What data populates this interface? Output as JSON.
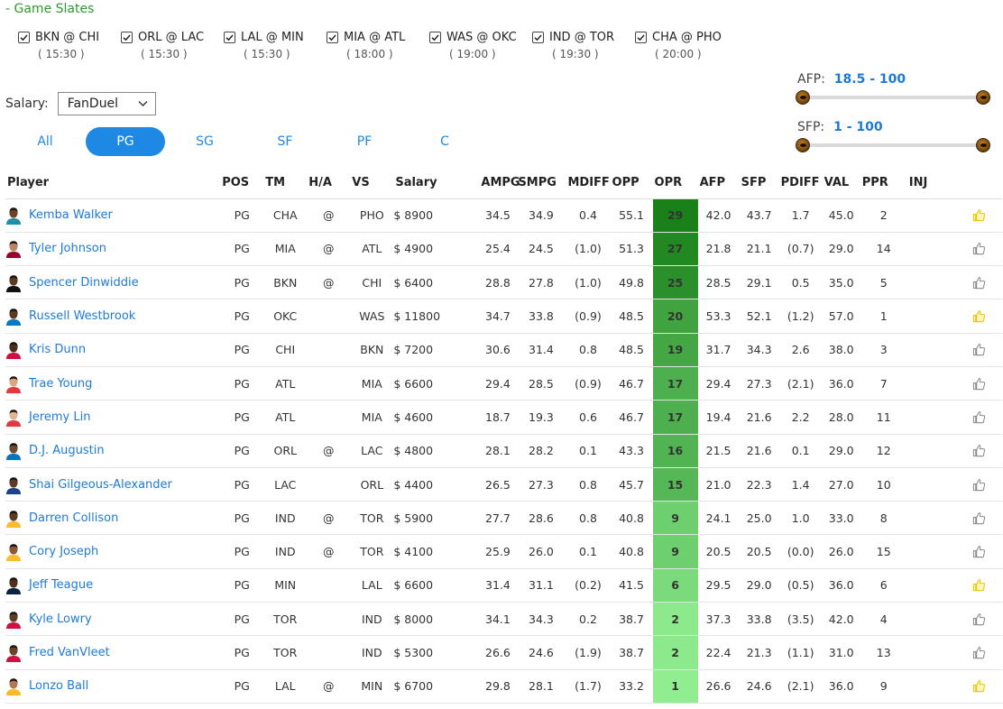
{
  "slates_title": "- Game Slates",
  "slates": [
    {
      "label": "BKN @ CHI",
      "time": "( 15:30 )"
    },
    {
      "label": "ORL @ LAC",
      "time": "( 15:30 )"
    },
    {
      "label": "LAL @ MIN",
      "time": "( 15:30 )"
    },
    {
      "label": "MIA @ ATL",
      "time": "( 18:00 )"
    },
    {
      "label": "WAS @ OKC",
      "time": "( 19:00 )"
    },
    {
      "label": "IND @ TOR",
      "time": "( 19:30 )"
    },
    {
      "label": "CHA @ PHO",
      "time": "( 20:00 )"
    }
  ],
  "salary": {
    "label": "Salary:",
    "selected": "FanDuel"
  },
  "position_tabs": [
    {
      "label": "All",
      "active": false
    },
    {
      "label": "PG",
      "active": true
    },
    {
      "label": "SG",
      "active": false
    },
    {
      "label": "SF",
      "active": false
    },
    {
      "label": "PF",
      "active": false
    },
    {
      "label": "C",
      "active": false
    }
  ],
  "afp_filter": {
    "label": "AFP:",
    "range": "18.5 - 100"
  },
  "sfp_filter": {
    "label": "SFP:",
    "range": "1 - 100"
  },
  "columns": [
    "Player",
    "POS",
    "TM",
    "H/A",
    "VS",
    "Salary",
    "AMPG",
    "SMPG",
    "MDIFF",
    "OPP",
    "OPR",
    "AFP",
    "SFP",
    "PDIFF",
    "VAL",
    "PPR",
    "INJ"
  ],
  "colors": {
    "accent": "#1e88e5",
    "link": "#1e7ad9",
    "positive": "#2e9a2e",
    "negative": "#d23d3d",
    "opr_text": "#ffef3a",
    "thumb_on": "#f2c200",
    "thumb_off": "#8a8a8a"
  },
  "players": [
    {
      "name": "Kemba Walker",
      "pos": "PG",
      "tm": "CHA",
      "ha": "@",
      "vs": "PHO",
      "salary": "$ 8900",
      "ampg": "34.5",
      "smpg": "34.9",
      "mdiff": "0.4",
      "opp": "55.1",
      "opr": "29",
      "afp": "42.0",
      "sfp": "43.7",
      "pdiff": "1.7",
      "val": "45.0",
      "ppr": "2",
      "thumb": "up-gold",
      "skin": "#6b4427",
      "jersey": "#1f8ea6"
    },
    {
      "name": "Tyler Johnson",
      "pos": "PG",
      "tm": "MIA",
      "ha": "@",
      "vs": "ATL",
      "salary": "$ 4900",
      "ampg": "25.4",
      "smpg": "24.5",
      "mdiff": "(1.0)",
      "opp": "51.3",
      "opr": "27",
      "afp": "21.8",
      "sfp": "21.1",
      "pdiff": "(0.7)",
      "val": "29.0",
      "ppr": "14",
      "thumb": "up-grey",
      "skin": "#b98463",
      "jersey": "#98002e"
    },
    {
      "name": "Spencer Dinwiddie",
      "pos": "PG",
      "tm": "BKN",
      "ha": "@",
      "vs": "CHI",
      "salary": "$ 6400",
      "ampg": "28.8",
      "smpg": "27.8",
      "mdiff": "(1.0)",
      "opp": "49.8",
      "opr": "25",
      "afp": "28.5",
      "sfp": "29.1",
      "pdiff": "0.5",
      "val": "35.0",
      "ppr": "5",
      "thumb": "up-grey",
      "skin": "#5a3a22",
      "jersey": "#111111"
    },
    {
      "name": "Russell Westbrook",
      "pos": "PG",
      "tm": "OKC",
      "ha": "",
      "vs": "WAS",
      "salary": "$ 11800",
      "ampg": "34.7",
      "smpg": "33.8",
      "mdiff": "(0.9)",
      "opp": "48.5",
      "opr": "20",
      "afp": "53.3",
      "sfp": "52.1",
      "pdiff": "(1.2)",
      "val": "57.0",
      "ppr": "1",
      "thumb": "up-gold",
      "skin": "#5c3b24",
      "jersey": "#007ac1"
    },
    {
      "name": "Kris Dunn",
      "pos": "PG",
      "tm": "CHI",
      "ha": "",
      "vs": "BKN",
      "salary": "$ 7200",
      "ampg": "30.6",
      "smpg": "31.4",
      "mdiff": "0.8",
      "opp": "48.5",
      "opr": "19",
      "afp": "31.7",
      "sfp": "34.3",
      "pdiff": "2.6",
      "val": "38.0",
      "ppr": "3",
      "thumb": "up-grey",
      "skin": "#4a2e1b",
      "jersey": "#ce1141"
    },
    {
      "name": "Trae Young",
      "pos": "PG",
      "tm": "ATL",
      "ha": "",
      "vs": "MIA",
      "salary": "$ 6600",
      "ampg": "29.4",
      "smpg": "28.5",
      "mdiff": "(0.9)",
      "opp": "46.7",
      "opr": "17",
      "afp": "29.4",
      "sfp": "27.3",
      "pdiff": "(2.1)",
      "val": "36.0",
      "ppr": "7",
      "thumb": "up-grey",
      "skin": "#d9a57e",
      "jersey": "#e03a3e"
    },
    {
      "name": "Jeremy Lin",
      "pos": "PG",
      "tm": "ATL",
      "ha": "",
      "vs": "MIA",
      "salary": "$ 4600",
      "ampg": "18.7",
      "smpg": "19.3",
      "mdiff": "0.6",
      "opp": "46.7",
      "opr": "17",
      "afp": "19.4",
      "sfp": "21.6",
      "pdiff": "2.2",
      "val": "28.0",
      "ppr": "11",
      "thumb": "up-grey",
      "skin": "#e1b793",
      "jersey": "#e03a3e"
    },
    {
      "name": "D.J. Augustin",
      "pos": "PG",
      "tm": "ORL",
      "ha": "@",
      "vs": "LAC",
      "salary": "$ 4800",
      "ampg": "28.1",
      "smpg": "28.2",
      "mdiff": "0.1",
      "opp": "43.3",
      "opr": "16",
      "afp": "21.5",
      "sfp": "21.6",
      "pdiff": "0.1",
      "val": "29.0",
      "ppr": "12",
      "thumb": "up-grey",
      "skin": "#6e4a30",
      "jersey": "#0077c0"
    },
    {
      "name": "Shai Gilgeous-Alexander",
      "pos": "PG",
      "tm": "LAC",
      "ha": "",
      "vs": "ORL",
      "salary": "$ 4400",
      "ampg": "26.5",
      "smpg": "27.3",
      "mdiff": "0.8",
      "opp": "45.7",
      "opr": "15",
      "afp": "21.0",
      "sfp": "22.3",
      "pdiff": "1.4",
      "val": "27.0",
      "ppr": "10",
      "thumb": "up-grey",
      "skin": "#5e3c24",
      "jersey": "#1d428a"
    },
    {
      "name": "Darren Collison",
      "pos": "PG",
      "tm": "IND",
      "ha": "@",
      "vs": "TOR",
      "salary": "$ 5900",
      "ampg": "27.7",
      "smpg": "28.6",
      "mdiff": "0.8",
      "opp": "40.8",
      "opr": "9",
      "afp": "24.1",
      "sfp": "25.0",
      "pdiff": "1.0",
      "val": "33.0",
      "ppr": "8",
      "thumb": "up-grey",
      "skin": "#5a3a22",
      "jersey": "#fdbb30"
    },
    {
      "name": "Cory Joseph",
      "pos": "PG",
      "tm": "IND",
      "ha": "@",
      "vs": "TOR",
      "salary": "$ 4100",
      "ampg": "25.9",
      "smpg": "26.0",
      "mdiff": "0.1",
      "opp": "40.8",
      "opr": "9",
      "afp": "20.5",
      "sfp": "20.5",
      "pdiff": "(0.0)",
      "val": "26.0",
      "ppr": "15",
      "thumb": "up-grey",
      "skin": "#8a5a38",
      "jersey": "#fdbb30"
    },
    {
      "name": "Jeff Teague",
      "pos": "PG",
      "tm": "MIN",
      "ha": "",
      "vs": "LAL",
      "salary": "$ 6600",
      "ampg": "31.4",
      "smpg": "31.1",
      "mdiff": "(0.2)",
      "opp": "41.5",
      "opr": "6",
      "afp": "29.5",
      "sfp": "29.0",
      "pdiff": "(0.5)",
      "val": "36.0",
      "ppr": "6",
      "thumb": "up-gold",
      "skin": "#4e311d",
      "jersey": "#0c2340"
    },
    {
      "name": "Kyle Lowry",
      "pos": "PG",
      "tm": "TOR",
      "ha": "",
      "vs": "IND",
      "salary": "$ 8000",
      "ampg": "34.1",
      "smpg": "34.3",
      "mdiff": "0.2",
      "opp": "38.7",
      "opr": "2",
      "afp": "37.3",
      "sfp": "33.8",
      "pdiff": "(3.5)",
      "val": "42.0",
      "ppr": "4",
      "thumb": "up-grey",
      "skin": "#5d3d26",
      "jersey": "#ce1141"
    },
    {
      "name": "Fred VanVleet",
      "pos": "PG",
      "tm": "TOR",
      "ha": "",
      "vs": "IND",
      "salary": "$ 5300",
      "ampg": "26.6",
      "smpg": "24.6",
      "mdiff": "(1.9)",
      "opp": "38.7",
      "opr": "2",
      "afp": "22.4",
      "sfp": "21.3",
      "pdiff": "(1.1)",
      "val": "31.0",
      "ppr": "13",
      "thumb": "up-grey",
      "skin": "#6a4428",
      "jersey": "#ce1141"
    },
    {
      "name": "Lonzo Ball",
      "pos": "PG",
      "tm": "LAL",
      "ha": "@",
      "vs": "MIN",
      "salary": "$ 6700",
      "ampg": "29.8",
      "smpg": "28.1",
      "mdiff": "(1.7)",
      "opp": "33.2",
      "opr": "1",
      "afp": "26.6",
      "sfp": "24.6",
      "pdiff": "(2.1)",
      "val": "36.0",
      "ppr": "9",
      "thumb": "up-gold",
      "skin": "#b07a52",
      "jersey": "#fdb927"
    }
  ]
}
